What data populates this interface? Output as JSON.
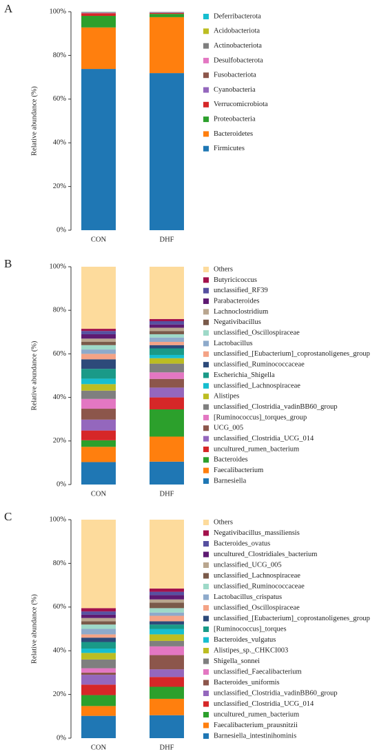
{
  "chart_data": [
    {
      "type": "bar",
      "stacked": true,
      "panel": "A",
      "ylabel": "Relative abundance (%)",
      "categories": [
        "CON",
        "DHF"
      ],
      "ylim": [
        0,
        100
      ],
      "yticks": [
        {
          "value": 0,
          "label": "0%"
        },
        {
          "value": 20,
          "label": "20%"
        },
        {
          "value": 40,
          "label": "40%"
        },
        {
          "value": 60,
          "label": "60%"
        },
        {
          "value": 80,
          "label": "80%"
        },
        {
          "value": 100,
          "label": "100%"
        }
      ],
      "series": [
        {
          "name": "Firmicutes",
          "color": "#1f77b4",
          "values": [
            73.8,
            71.9
          ]
        },
        {
          "name": "Bacteroidetes",
          "color": "#ff7f0e",
          "values": [
            19.0,
            25.6
          ]
        },
        {
          "name": "Proteobacteria",
          "color": "#2ca02c",
          "values": [
            5.3,
            1.5
          ]
        },
        {
          "name": "Verrucomicrobiota",
          "color": "#d62728",
          "values": [
            1.2,
            0.4
          ]
        },
        {
          "name": "Cyanobacteria",
          "color": "#9467bd",
          "values": [
            0.2,
            0.2
          ]
        },
        {
          "name": "Fusobacteriota",
          "color": "#8c564b",
          "values": [
            0.1,
            0.1
          ]
        },
        {
          "name": "Desulfobacterota",
          "color": "#e377c2",
          "values": [
            0.1,
            0.1
          ]
        },
        {
          "name": "Actinobacteriota",
          "color": "#7f7f7f",
          "values": [
            0.1,
            0.1
          ]
        },
        {
          "name": "Acidobacteriota",
          "color": "#bcbd22",
          "values": [
            0.1,
            0.05
          ]
        },
        {
          "name": "Deferribacterota",
          "color": "#17becf",
          "values": [
            0.1,
            0.05
          ]
        }
      ]
    },
    {
      "type": "bar",
      "stacked": true,
      "panel": "B",
      "ylabel": "Relative abundance (%)",
      "categories": [
        "CON",
        "DHF"
      ],
      "ylim": [
        0,
        100
      ],
      "yticks": [
        {
          "value": 0,
          "label": "0%"
        },
        {
          "value": 20,
          "label": "20%"
        },
        {
          "value": 40,
          "label": "40%"
        },
        {
          "value": 60,
          "label": "60%"
        },
        {
          "value": 80,
          "label": "80%"
        },
        {
          "value": 100,
          "label": "100%"
        }
      ],
      "series": [
        {
          "name": "Barnesiella",
          "color": "#1f77b4",
          "values": [
            10.3,
            10.5
          ]
        },
        {
          "name": "Faecalibacterium",
          "color": "#ff7f0e",
          "values": [
            7,
            11.5
          ]
        },
        {
          "name": "Bacteroides",
          "color": "#2ca02c",
          "values": [
            3,
            12.5
          ]
        },
        {
          "name": "uncultured_rumen_bacterium",
          "color": "#d62728",
          "values": [
            4.5,
            5.5
          ]
        },
        {
          "name": "unclassified_Clostridia_UCG_014",
          "color": "#9467bd",
          "values": [
            5,
            4.5
          ]
        },
        {
          "name": "UCG_005",
          "color": "#8c564b",
          "values": [
            5,
            4
          ]
        },
        {
          "name": "[Ruminococcus]_torques_group",
          "color": "#e377c2",
          "values": [
            4.5,
            3
          ]
        },
        {
          "name": "unclassified_Clostridia_vadinBB60_group",
          "color": "#7f7f7f",
          "values": [
            3.8,
            4
          ]
        },
        {
          "name": "Alistipes",
          "color": "#bcbd22",
          "values": [
            3,
            2.5
          ]
        },
        {
          "name": "unclassified_Lachnospiraceae",
          "color": "#17becf",
          "values": [
            2.5,
            1.5
          ]
        },
        {
          "name": "Escherichia_Shigella",
          "color": "#1a9a88",
          "values": [
            4.5,
            3
          ]
        },
        {
          "name": "unclassified_Ruminococcaceae",
          "color": "#2d4a7a",
          "values": [
            4.4,
            1.5
          ]
        },
        {
          "name": "unclassified_[Eubacterium]_coprostanoligenes_group",
          "color": "#f4a386",
          "values": [
            2.5,
            1.5
          ]
        },
        {
          "name": "Lactobacillus",
          "color": "#8eaacb",
          "values": [
            2,
            2
          ]
        },
        {
          "name": "unclassified_Oscillospiraceae",
          "color": "#9ed9c8",
          "values": [
            2,
            1.5
          ]
        },
        {
          "name": "Negativibacillus",
          "color": "#7a5a4a",
          "values": [
            1.5,
            1.5
          ]
        },
        {
          "name": "Lachnoclostridium",
          "color": "#b9a68f",
          "values": [
            1.5,
            1.5
          ]
        },
        {
          "name": "Parabacteroides",
          "color": "#5e1a72",
          "values": [
            2,
            1.5
          ]
        },
        {
          "name": "unclassified_RF39",
          "color": "#5650a0",
          "values": [
            1.5,
            1.5
          ]
        },
        {
          "name": "Butyricicoccus",
          "color": "#a3114c",
          "values": [
            1,
            1
          ]
        },
        {
          "name": "Others",
          "color": "#fddb9c",
          "values": [
            28.5,
            24
          ]
        }
      ]
    },
    {
      "type": "bar",
      "stacked": true,
      "panel": "C",
      "ylabel": "Relative abundance (%)",
      "categories": [
        "CON",
        "DHF"
      ],
      "ylim": [
        0,
        100
      ],
      "yticks": [
        {
          "value": 0,
          "label": "0%"
        },
        {
          "value": 20,
          "label": "20%"
        },
        {
          "value": 40,
          "label": "40%"
        },
        {
          "value": 60,
          "label": "60%"
        },
        {
          "value": 80,
          "label": "80%"
        },
        {
          "value": 100,
          "label": "100%"
        }
      ],
      "series": [
        {
          "name": "Barnesiella_intestinihominis",
          "color": "#1f77b4",
          "values": [
            10.2,
            10.5
          ]
        },
        {
          "name": "Faecalibacterium_prausnitzii",
          "color": "#ff7f0e",
          "values": [
            4.5,
            7.5
          ]
        },
        {
          "name": "uncultured_rumen_bacterium",
          "color": "#2ca02c",
          "values": [
            5,
            5.5
          ]
        },
        {
          "name": "unclassified_Clostridia_UCG_014",
          "color": "#d62728",
          "values": [
            4.8,
            4.5
          ]
        },
        {
          "name": "unclassified_Clostridia_vadinBB60_group",
          "color": "#9467bd",
          "values": [
            4.5,
            3.5
          ]
        },
        {
          "name": "Bacteroides_uniformis",
          "color": "#8c564b",
          "values": [
            1,
            6.5
          ]
        },
        {
          "name": "unclassified_Faecalibacterium",
          "color": "#e377c2",
          "values": [
            2,
            4
          ]
        },
        {
          "name": "Shigella_sonnei",
          "color": "#7f7f7f",
          "values": [
            4,
            2.5
          ]
        },
        {
          "name": "Alistipes_sp._CHKCI003",
          "color": "#bcbd22",
          "values": [
            3,
            3
          ]
        },
        {
          "name": "Bacteroides_vulgatus",
          "color": "#17becf",
          "values": [
            2,
            2.5
          ]
        },
        {
          "name": "[Ruminococcus]_torques",
          "color": "#1a9a88",
          "values": [
            3,
            2
          ]
        },
        {
          "name": "unclassified_[Eubacterium]_coprostanoligenes_group",
          "color": "#2d4a7a",
          "values": [
            2,
            1.5
          ]
        },
        {
          "name": "unclassified_Oscillospiraceae",
          "color": "#f4a386",
          "values": [
            1.5,
            2.5
          ]
        },
        {
          "name": "Lactobacillus_crispatus",
          "color": "#8eaacb",
          "values": [
            2.5,
            1.5
          ]
        },
        {
          "name": "unclassified_Ruminococcaceae",
          "color": "#9ed9c8",
          "values": [
            2,
            2
          ]
        },
        {
          "name": "unclassified_Lachnospiraceae",
          "color": "#7a5a4a",
          "values": [
            1.5,
            2.5
          ]
        },
        {
          "name": "unclassified_UCG_005",
          "color": "#b9a68f",
          "values": [
            1.5,
            1.5
          ]
        },
        {
          "name": "uncultured_Clostridiales_bacterium",
          "color": "#5e1a72",
          "values": [
            1.5,
            2
          ]
        },
        {
          "name": "Bacteroides_ovatus",
          "color": "#5650a0",
          "values": [
            1.5,
            1.5
          ]
        },
        {
          "name": "Negativibacillus_massiliensis",
          "color": "#a3114c",
          "values": [
            1.5,
            1.5
          ]
        },
        {
          "name": "Others",
          "color": "#fddb9c",
          "values": [
            40.5,
            31.5
          ]
        }
      ]
    }
  ]
}
